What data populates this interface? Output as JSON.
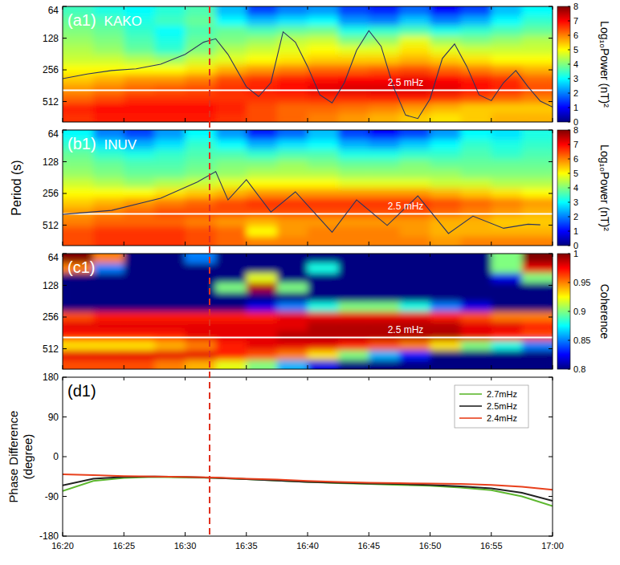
{
  "chart_data": [
    {
      "type": "heatmap",
      "title": "(a1)",
      "subtitle": "KAKO",
      "ylabel": "Period (s)",
      "xlim": [
        980,
        1020
      ],
      "xticks": [
        980,
        985,
        990,
        995,
        1000,
        1005,
        1010,
        1015,
        1020
      ],
      "ylim": [
        64,
        800
      ],
      "yticks": [
        64,
        128,
        256,
        512
      ],
      "log": "y",
      "tick_labels": "y",
      "x_bins": [
        980,
        982.5,
        985,
        987.5,
        990,
        992.5,
        995,
        997.5,
        1000,
        1002.5,
        1005,
        1007.5,
        1010,
        1012.5,
        1015,
        1017.5,
        1020
      ],
      "y_bins": [
        64,
        79,
        98,
        121,
        149,
        184,
        228,
        281,
        347,
        429,
        530,
        655,
        800
      ],
      "cells": [
        [
          3.5,
          3.2,
          3.0,
          3.3,
          3.6,
          2.5,
          1.5,
          2.0,
          2.2,
          1.5,
          1.2,
          1.8,
          1.0,
          1.5,
          2.5,
          3.0
        ],
        [
          3.8,
          3.6,
          3.2,
          3.5,
          3.8,
          3.0,
          2.5,
          2.8,
          3.0,
          2.2,
          2.0,
          2.6,
          2.0,
          2.4,
          3.0,
          3.4
        ],
        [
          4.0,
          3.8,
          3.4,
          3.0,
          3.6,
          3.8,
          3.6,
          3.8,
          3.9,
          3.2,
          3.4,
          3.6,
          3.2,
          3.4,
          3.6,
          3.8
        ],
        [
          4.2,
          4.0,
          3.6,
          3.2,
          3.8,
          4.0,
          4.2,
          4.5,
          4.6,
          4.0,
          4.2,
          4.8,
          4.2,
          4.0,
          4.2,
          4.4
        ],
        [
          4.4,
          4.2,
          3.8,
          3.4,
          4.0,
          4.4,
          4.6,
          4.8,
          5.0,
          4.8,
          4.8,
          5.2,
          4.8,
          4.6,
          4.6,
          4.6
        ],
        [
          4.6,
          4.6,
          4.4,
          4.2,
          4.6,
          4.8,
          5.0,
          5.2,
          5.4,
          5.4,
          5.4,
          5.6,
          5.4,
          5.2,
          5.0,
          5.0
        ],
        [
          5.0,
          5.0,
          5.0,
          5.0,
          5.2,
          5.6,
          5.8,
          6.0,
          6.2,
          6.2,
          6.3,
          6.4,
          6.2,
          6.0,
          5.8,
          5.6
        ],
        [
          5.4,
          5.6,
          5.8,
          5.8,
          6.0,
          6.4,
          6.6,
          6.8,
          6.9,
          7.0,
          7.0,
          7.1,
          7.0,
          6.8,
          6.6,
          6.2
        ],
        [
          5.8,
          6.0,
          6.2,
          6.3,
          6.4,
          6.6,
          6.8,
          7.0,
          7.2,
          7.3,
          7.3,
          7.3,
          7.2,
          7.0,
          6.8,
          6.4
        ],
        [
          6.2,
          6.4,
          6.6,
          6.6,
          6.6,
          6.6,
          6.6,
          6.6,
          6.7,
          6.7,
          6.8,
          6.8,
          6.6,
          6.4,
          6.2,
          6.0
        ],
        [
          6.8,
          7.0,
          7.0,
          7.0,
          7.0,
          6.8,
          6.4,
          6.2,
          6.2,
          6.1,
          6.0,
          5.8,
          5.6,
          5.4,
          5.4,
          5.4
        ],
        [
          6.6,
          6.8,
          6.8,
          6.8,
          6.8,
          6.6,
          6.4,
          6.2,
          6.0,
          5.8,
          5.6,
          5.4,
          5.2,
          5.4,
          5.6,
          5.6
        ]
      ],
      "color_range": [
        0,
        8
      ],
      "color_ticks": [
        0,
        1,
        2,
        3,
        4,
        5,
        6,
        7,
        8
      ],
      "color_label": "Log₁₀Power (nT)²",
      "hline": {
        "y": 400,
        "label": "2.5 mHz"
      },
      "vline": 992,
      "trace": {
        "ylim": [
          -10,
          10
        ],
        "x": [
          980,
          982,
          984,
          986,
          988,
          990,
          991.5,
          992.5,
          993.5,
          995,
          996,
          997,
          998,
          999,
          1000,
          1001,
          1002,
          1003,
          1004,
          1005,
          1006,
          1007,
          1008,
          1009,
          1010,
          1011,
          1012,
          1013,
          1014,
          1015,
          1016,
          1017,
          1018,
          1019,
          1020
        ],
        "values": [
          -2.5,
          -1.7,
          -1.1,
          -0.8,
          0,
          1.7,
          3.8,
          4.4,
          1.7,
          -3.9,
          -5.6,
          -3.2,
          5.6,
          3.8,
          -0.4,
          -5.3,
          -6.7,
          -3.2,
          2.4,
          5.8,
          3.1,
          -3.9,
          -8.8,
          -9.4,
          -6.0,
          1.0,
          3.5,
          -0.4,
          -5.3,
          -6.3,
          -3.2,
          -1.1,
          -3.9,
          -6.4,
          -7.4
        ]
      }
    },
    {
      "type": "heatmap",
      "title": "(b1)",
      "subtitle": "INUV",
      "xlim": [
        980,
        1020
      ],
      "xticks": [
        980,
        985,
        990,
        995,
        1000,
        1005,
        1010,
        1015,
        1020
      ],
      "ylim": [
        64,
        800
      ],
      "yticks": [
        64,
        128,
        256,
        512
      ],
      "log": "y",
      "tick_labels": "y",
      "x_bins": [
        980,
        982.5,
        985,
        987.5,
        990,
        992.5,
        995,
        997.5,
        1000,
        1002.5,
        1005,
        1007.5,
        1010,
        1012.5,
        1015,
        1017.5,
        1020
      ],
      "y_bins": [
        64,
        79,
        98,
        121,
        149,
        184,
        228,
        281,
        347,
        429,
        530,
        655,
        800
      ],
      "cells": [
        [
          3.0,
          2.0,
          1.5,
          2.2,
          3.0,
          2.2,
          1.2,
          1.8,
          2.5,
          1.5,
          1.0,
          1.5,
          2.2,
          3.0,
          2.8,
          3.2
        ],
        [
          3.4,
          2.8,
          2.4,
          2.8,
          3.4,
          3.0,
          2.4,
          2.8,
          3.0,
          2.4,
          2.2,
          2.6,
          3.0,
          3.4,
          3.2,
          3.4
        ],
        [
          3.8,
          3.4,
          3.2,
          3.4,
          3.6,
          3.6,
          3.4,
          3.6,
          3.6,
          3.2,
          3.2,
          3.4,
          3.4,
          3.6,
          3.4,
          3.6
        ],
        [
          4.0,
          3.8,
          3.6,
          3.6,
          3.8,
          4.0,
          4.0,
          4.2,
          4.0,
          3.8,
          3.8,
          4.0,
          3.8,
          3.8,
          3.8,
          3.8
        ],
        [
          4.2,
          4.0,
          3.8,
          3.8,
          4.0,
          4.2,
          4.4,
          4.4,
          4.4,
          4.2,
          4.2,
          4.2,
          4.2,
          4.0,
          4.0,
          4.0
        ],
        [
          4.6,
          4.4,
          4.2,
          4.4,
          4.6,
          4.8,
          5.0,
          5.0,
          5.0,
          4.8,
          4.8,
          4.8,
          4.6,
          4.6,
          4.4,
          4.4
        ],
        [
          5.0,
          5.0,
          5.0,
          5.2,
          5.4,
          5.6,
          5.8,
          5.8,
          5.8,
          5.8,
          5.8,
          5.8,
          5.6,
          5.4,
          5.2,
          5.0
        ],
        [
          5.4,
          5.6,
          5.8,
          6.0,
          6.2,
          6.4,
          6.6,
          6.6,
          6.6,
          6.6,
          6.6,
          6.6,
          6.4,
          6.2,
          6.0,
          5.8
        ],
        [
          5.8,
          6.0,
          6.2,
          6.4,
          6.4,
          6.4,
          6.4,
          6.4,
          6.4,
          6.4,
          6.4,
          6.4,
          6.2,
          6.0,
          5.8,
          5.6
        ],
        [
          6.0,
          6.2,
          6.2,
          6.2,
          6.0,
          5.8,
          5.6,
          5.8,
          5.8,
          5.8,
          5.8,
          5.8,
          5.6,
          5.6,
          5.4,
          5.4
        ],
        [
          6.4,
          6.6,
          6.6,
          6.6,
          6.4,
          6.2,
          5.0,
          5.8,
          6.0,
          6.0,
          6.0,
          5.8,
          5.6,
          5.6,
          5.6,
          5.6
        ],
        [
          6.4,
          6.6,
          6.6,
          6.6,
          6.4,
          6.2,
          6.0,
          6.0,
          6.0,
          6.0,
          6.0,
          6.0,
          5.8,
          6.0,
          6.0,
          6.0
        ]
      ],
      "color_range": [
        0,
        8
      ],
      "color_ticks": [
        0,
        1,
        2,
        3,
        4,
        5,
        6,
        7,
        8
      ],
      "color_label": "Log₁₀Power (nT)²",
      "hline": {
        "y": 400,
        "label": "2.5 mHz"
      },
      "trace": {
        "ylim": [
          -10,
          10
        ],
        "x": [
          980,
          984,
          988,
          991,
          992.5,
          993.5,
          995,
          997,
          999,
          1002,
          1004,
          1006.5,
          1009,
          1011.5,
          1013.5,
          1016,
          1018,
          1019
        ],
        "values": [
          -4.6,
          -3.9,
          -1.8,
          1.0,
          2.8,
          -2.1,
          1.4,
          -4.2,
          -0.7,
          -7.7,
          -2.1,
          -6.5,
          -1.4,
          -7.9,
          -4.9,
          -7.0,
          -6.3,
          -6.4
        ]
      }
    },
    {
      "type": "heatmap",
      "title": "(c1)",
      "xlim": [
        980,
        1020
      ],
      "xticks": [
        980,
        985,
        990,
        995,
        1000,
        1005,
        1010,
        1015,
        1020
      ],
      "ylim": [
        64,
        800
      ],
      "yticks": [
        64,
        128,
        256,
        512
      ],
      "log": "y",
      "tick_labels": "y",
      "x_bins": [
        980,
        982.5,
        985,
        987.5,
        990,
        992.5,
        995,
        997.5,
        1000,
        1002.5,
        1005,
        1007.5,
        1010,
        1012.5,
        1015,
        1017.5,
        1020
      ],
      "y_bins": [
        64,
        79,
        98,
        121,
        149,
        184,
        228,
        281,
        347,
        429,
        530,
        655,
        800
      ],
      "cells": [
        [
          1.0,
          0.95,
          0.8,
          0.8,
          0.85,
          0.8,
          0.8,
          0.8,
          0.8,
          0.8,
          0.8,
          0.8,
          0.8,
          0.8,
          0.9,
          1.0
        ],
        [
          0.95,
          0.85,
          0.8,
          0.8,
          0.8,
          0.8,
          0.8,
          0.8,
          0.88,
          0.8,
          0.8,
          0.8,
          0.8,
          0.8,
          0.9,
          0.98
        ],
        [
          0.8,
          0.8,
          0.8,
          0.8,
          0.8,
          0.8,
          0.92,
          0.8,
          0.8,
          0.8,
          0.8,
          0.8,
          0.8,
          0.8,
          0.82,
          0.9
        ],
        [
          0.8,
          0.8,
          0.8,
          0.8,
          0.8,
          0.9,
          0.99,
          0.9,
          0.8,
          0.8,
          0.8,
          0.8,
          0.8,
          0.8,
          0.8,
          0.8
        ],
        [
          0.8,
          0.8,
          0.8,
          0.8,
          0.8,
          0.8,
          0.8,
          0.8,
          0.8,
          0.8,
          0.8,
          0.8,
          0.8,
          0.8,
          0.8,
          0.8
        ],
        [
          0.8,
          0.8,
          0.8,
          0.8,
          0.8,
          0.8,
          0.82,
          0.85,
          0.88,
          0.9,
          0.9,
          0.88,
          0.85,
          0.82,
          0.8,
          0.8
        ],
        [
          0.96,
          0.97,
          0.97,
          0.97,
          0.97,
          0.97,
          0.97,
          0.98,
          0.98,
          0.98,
          0.98,
          0.98,
          0.97,
          0.96,
          0.95,
          0.95
        ],
        [
          0.98,
          0.98,
          0.98,
          0.98,
          0.98,
          0.98,
          0.98,
          0.98,
          0.99,
          0.99,
          0.99,
          0.99,
          0.99,
          0.98,
          0.98,
          0.97
        ],
        [
          0.97,
          0.97,
          0.97,
          0.97,
          0.98,
          0.98,
          0.98,
          0.99,
          0.99,
          0.99,
          0.99,
          0.99,
          0.99,
          0.98,
          0.97,
          0.96
        ],
        [
          0.93,
          0.93,
          0.93,
          0.94,
          0.95,
          0.97,
          0.98,
          0.98,
          0.98,
          0.97,
          0.96,
          0.95,
          0.93,
          0.9,
          0.88,
          0.85
        ],
        [
          0.98,
          0.98,
          0.98,
          0.98,
          0.98,
          0.97,
          0.96,
          0.95,
          0.93,
          0.9,
          0.86,
          0.83,
          0.8,
          0.8,
          0.8,
          0.8
        ],
        [
          0.96,
          0.96,
          0.96,
          0.95,
          0.94,
          0.92,
          0.9,
          0.86,
          0.82,
          0.8,
          0.8,
          0.8,
          0.8,
          0.8,
          0.8,
          0.8
        ]
      ],
      "color_range": [
        0.8,
        1
      ],
      "color_ticks": [
        0.8,
        0.85,
        0.9,
        0.95,
        1
      ],
      "color_label": "Coherence",
      "hline": {
        "y": 400,
        "label": "2.5 mHz"
      }
    },
    {
      "type": "line",
      "title": "(d1)",
      "ylabel": "Phase Difference (degree)",
      "xlim": [
        980,
        1020
      ],
      "xticks": [
        {
          "value": 980,
          "label": "16:20"
        },
        {
          "value": 985,
          "label": "16:25"
        },
        {
          "value": 990,
          "label": "16:30"
        },
        {
          "value": 995,
          "label": "16:35"
        },
        {
          "value": 1000,
          "label": "16:40"
        },
        {
          "value": 1005,
          "label": "16:45"
        },
        {
          "value": 1010,
          "label": "16:50"
        },
        {
          "value": 1015,
          "label": "16:55"
        },
        {
          "value": 1020,
          "label": "17:00"
        }
      ],
      "ylim": [
        -180,
        180
      ],
      "yticks": [
        -180,
        -90,
        0,
        90,
        180
      ],
      "legend": "top-right",
      "x": [
        980,
        982.5,
        985,
        987.5,
        990,
        992.5,
        995,
        997.5,
        1000,
        1002.5,
        1005,
        1007.5,
        1010,
        1012.5,
        1015,
        1017.5,
        1020
      ],
      "series": [
        {
          "name": "2.7mHz",
          "color": "#5db82f",
          "values": [
            -78,
            -55,
            -48,
            -46,
            -47,
            -48,
            -51,
            -54,
            -57,
            -60,
            -62,
            -64,
            -66,
            -70,
            -76,
            -90,
            -112
          ]
        },
        {
          "name": "2.5mHz",
          "color": "#222222",
          "values": [
            -65,
            -50,
            -46,
            -45,
            -46,
            -48,
            -51,
            -54,
            -57,
            -59,
            -61,
            -62,
            -64,
            -67,
            -72,
            -82,
            -100
          ]
        },
        {
          "name": "2.4mHz",
          "color": "#e8401c",
          "values": [
            -40,
            -42,
            -44,
            -45,
            -46,
            -47,
            -50,
            -52,
            -55,
            -57,
            -59,
            -60,
            -61,
            -62,
            -64,
            -68,
            -75
          ]
        }
      ]
    }
  ]
}
